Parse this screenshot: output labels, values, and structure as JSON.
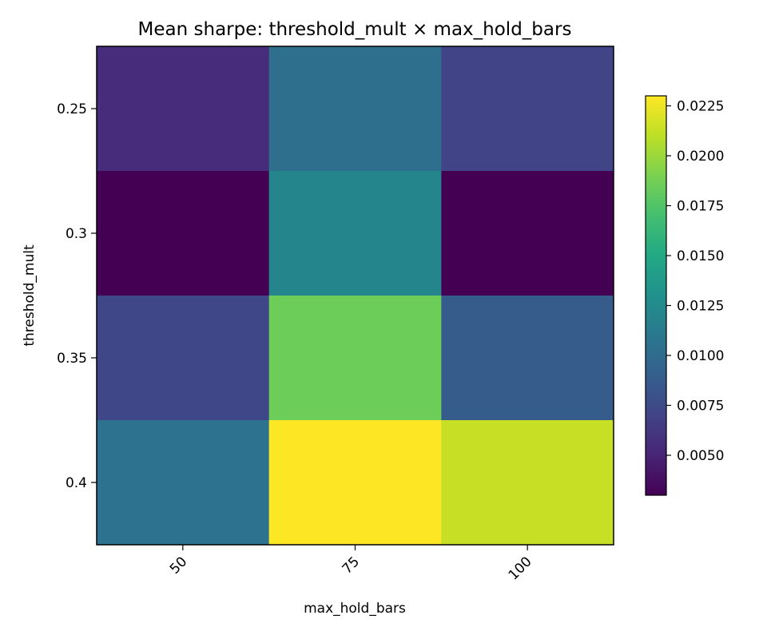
{
  "chart_data": {
    "type": "heatmap",
    "title": "Mean sharpe: threshold_mult × max_hold_bars",
    "xlabel": "max_hold_bars",
    "ylabel": "threshold_mult",
    "x_categories": [
      "50",
      "75",
      "100"
    ],
    "y_categories": [
      "0.25",
      "0.3",
      "0.35",
      "0.4"
    ],
    "values": [
      [
        0.0055,
        0.0103,
        0.007
      ],
      [
        0.003,
        0.012,
        0.003
      ],
      [
        0.0072,
        0.0185,
        0.0088
      ],
      [
        0.0105,
        0.023,
        0.0213
      ]
    ],
    "colormap": "viridis",
    "colorbar": {
      "vmin": 0.003,
      "vmax": 0.023,
      "ticks": [
        0.005,
        0.0075,
        0.01,
        0.0125,
        0.015,
        0.0175,
        0.02,
        0.0225
      ],
      "tick_labels": [
        "0.0050",
        "0.0075",
        "0.0100",
        "0.0125",
        "0.0150",
        "0.0175",
        "0.0200",
        "0.0225"
      ]
    },
    "grid": false
  }
}
